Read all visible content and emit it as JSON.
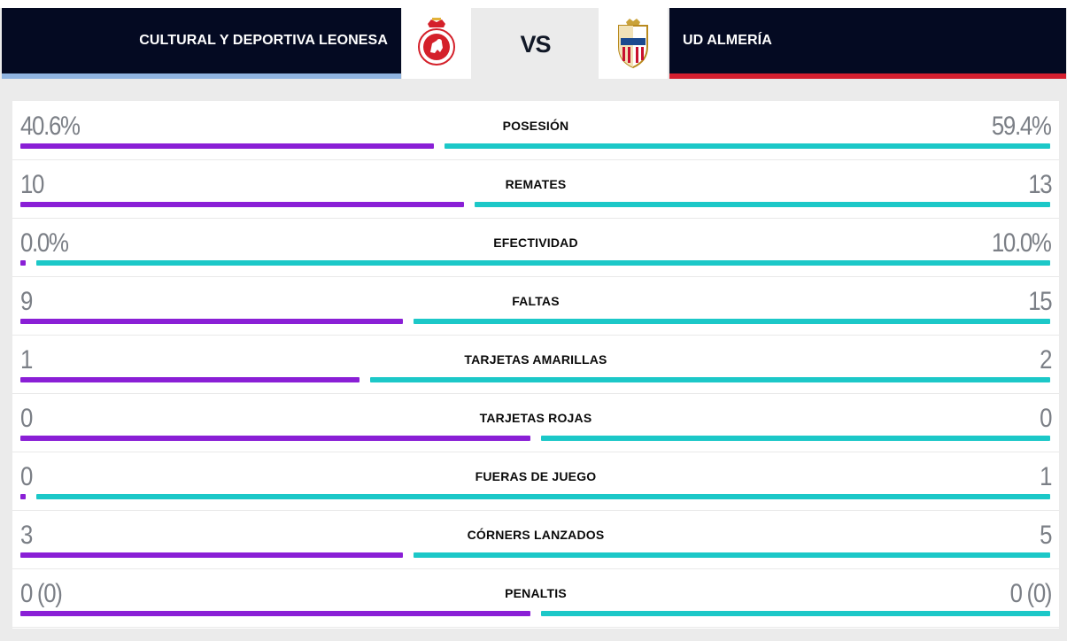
{
  "header": {
    "home_team": "CULTURAL Y DEPORTIVA LEONESA",
    "away_team": "UD ALMERÍA",
    "vs_label": "VS",
    "home_crest_icon": "cultural-leonesa-crest",
    "away_crest_icon": "ud-almeria-crest",
    "home_accent_color": "#90b4e0",
    "away_accent_color": "#d51f2f"
  },
  "colors": {
    "home_bar": "#8a1fd6",
    "away_bar": "#1cc8c8",
    "header_bg": "#040a22"
  },
  "stats": [
    {
      "label": "POSESIÓN",
      "home": "40.6%",
      "away": "59.4%",
      "home_share": 0.406
    },
    {
      "label": "REMATES",
      "home": "10",
      "away": "13",
      "home_share": 0.435
    },
    {
      "label": "EFECTIVIDAD",
      "home": "0.0%",
      "away": "10.0%",
      "home_share": 0.0
    },
    {
      "label": "FALTAS",
      "home": "9",
      "away": "15",
      "home_share": 0.375
    },
    {
      "label": "TARJETAS AMARILLAS",
      "home": "1",
      "away": "2",
      "home_share": 0.333
    },
    {
      "label": "TARJETAS ROJAS",
      "home": "0",
      "away": "0",
      "home_share": 0.5
    },
    {
      "label": "FUERAS DE JUEGO",
      "home": "0",
      "away": "1",
      "home_share": 0.0
    },
    {
      "label": "CÓRNERS LANZADOS",
      "home": "3",
      "away": "5",
      "home_share": 0.375
    },
    {
      "label": "PENALTIS",
      "home": "0 (0)",
      "away": "0 (0)",
      "home_share": 0.5
    }
  ]
}
